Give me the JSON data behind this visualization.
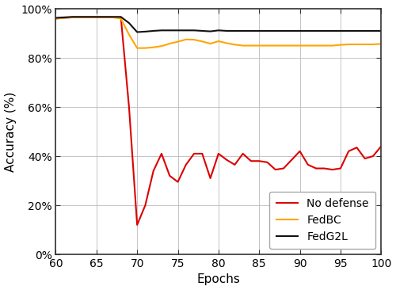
{
  "xlabel": "Epochs",
  "ylabel": "Accuracy (%)",
  "xlim": [
    60,
    100
  ],
  "ylim": [
    0,
    1.0
  ],
  "xticks": [
    60,
    65,
    70,
    75,
    80,
    85,
    90,
    95,
    100
  ],
  "yticks": [
    0,
    0.2,
    0.4,
    0.6,
    0.8,
    1.0
  ],
  "ytick_labels": [
    "0%",
    "20%",
    "40%",
    "60%",
    "80%",
    "100%"
  ],
  "no_defense": {
    "x": [
      60,
      61,
      62,
      63,
      64,
      65,
      66,
      67,
      68,
      69,
      70,
      71,
      72,
      73,
      74,
      75,
      76,
      77,
      78,
      79,
      80,
      81,
      82,
      83,
      84,
      85,
      86,
      87,
      88,
      89,
      90,
      91,
      92,
      93,
      94,
      95,
      96,
      97,
      98,
      99,
      100
    ],
    "y": [
      0.96,
      0.963,
      0.965,
      0.965,
      0.965,
      0.965,
      0.965,
      0.965,
      0.965,
      0.6,
      0.12,
      0.2,
      0.34,
      0.41,
      0.32,
      0.295,
      0.365,
      0.41,
      0.41,
      0.31,
      0.41,
      0.385,
      0.365,
      0.41,
      0.38,
      0.38,
      0.375,
      0.345,
      0.35,
      0.385,
      0.42,
      0.365,
      0.35,
      0.35,
      0.345,
      0.35,
      0.42,
      0.435,
      0.39,
      0.4,
      0.44
    ],
    "color": "#dd0000",
    "label": "No defense",
    "linewidth": 1.5
  },
  "fedbc": {
    "x": [
      60,
      61,
      62,
      63,
      64,
      65,
      66,
      67,
      68,
      69,
      70,
      71,
      72,
      73,
      74,
      75,
      76,
      77,
      78,
      79,
      80,
      81,
      82,
      83,
      84,
      85,
      86,
      87,
      88,
      89,
      90,
      91,
      92,
      93,
      94,
      95,
      96,
      97,
      98,
      99,
      100
    ],
    "y": [
      0.96,
      0.963,
      0.965,
      0.965,
      0.965,
      0.965,
      0.965,
      0.965,
      0.96,
      0.895,
      0.84,
      0.84,
      0.843,
      0.848,
      0.858,
      0.866,
      0.875,
      0.874,
      0.867,
      0.858,
      0.868,
      0.86,
      0.854,
      0.85,
      0.85,
      0.85,
      0.85,
      0.85,
      0.85,
      0.85,
      0.85,
      0.85,
      0.85,
      0.85,
      0.85,
      0.853,
      0.855,
      0.855,
      0.855,
      0.855,
      0.857
    ],
    "color": "#FFA500",
    "label": "FedBC",
    "linewidth": 1.5
  },
  "fedg2l": {
    "x": [
      60,
      61,
      62,
      63,
      64,
      65,
      66,
      67,
      68,
      69,
      70,
      71,
      72,
      73,
      74,
      75,
      76,
      77,
      78,
      79,
      80,
      81,
      82,
      83,
      84,
      85,
      86,
      87,
      88,
      89,
      90,
      91,
      92,
      93,
      94,
      95,
      96,
      97,
      98,
      99,
      100
    ],
    "y": [
      0.963,
      0.965,
      0.967,
      0.967,
      0.967,
      0.967,
      0.967,
      0.967,
      0.967,
      0.942,
      0.905,
      0.907,
      0.91,
      0.912,
      0.912,
      0.912,
      0.912,
      0.912,
      0.91,
      0.908,
      0.912,
      0.91,
      0.91,
      0.91,
      0.91,
      0.91,
      0.91,
      0.91,
      0.91,
      0.91,
      0.91,
      0.91,
      0.91,
      0.91,
      0.91,
      0.91,
      0.91,
      0.91,
      0.91,
      0.91,
      0.91
    ],
    "color": "#111111",
    "label": "FedG2L",
    "linewidth": 1.5
  },
  "background_color": "#ffffff",
  "grid_color": "#bbbbbb",
  "spine_color": "#333333",
  "spine_linewidth": 1.2,
  "tick_fontsize": 10,
  "label_fontsize": 11,
  "legend_fontsize": 10
}
